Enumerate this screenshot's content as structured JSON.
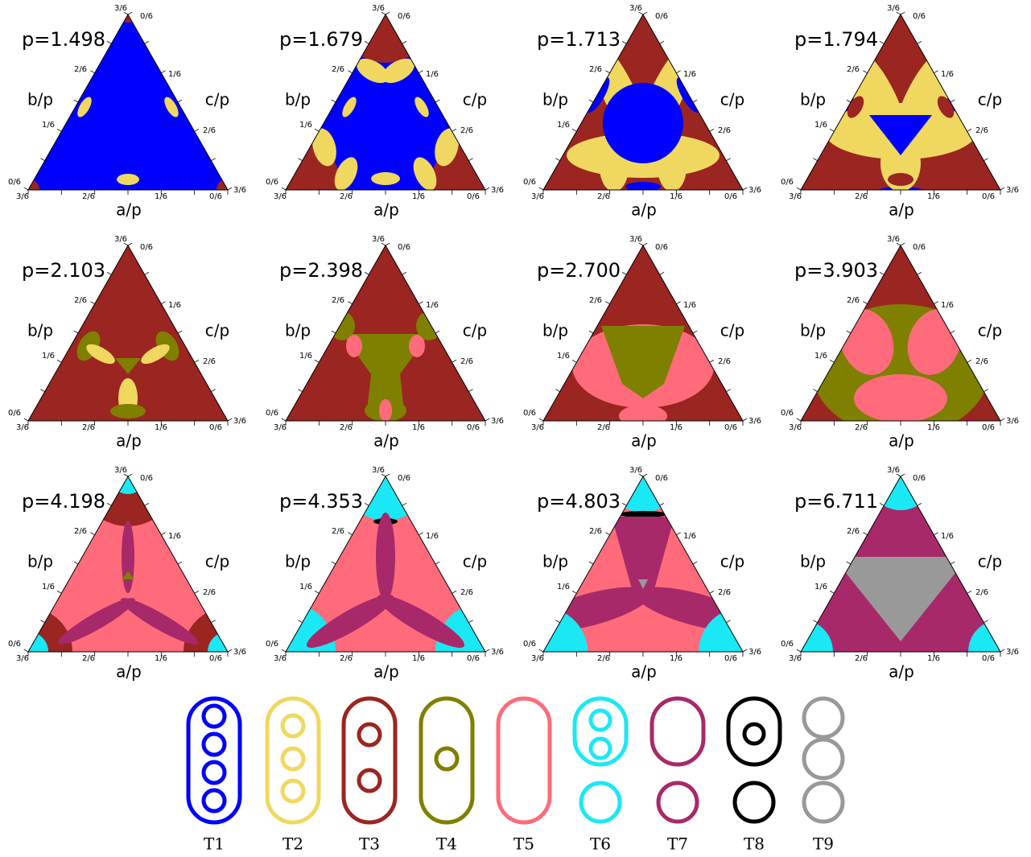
{
  "panels": [
    {
      "label": "p=1.498"
    },
    {
      "label": "p=1.679"
    },
    {
      "label": "p=1.713"
    },
    {
      "label": "p=1.794"
    },
    {
      "label": "p=2.103"
    },
    {
      "label": "p=2.398"
    },
    {
      "label": "p=2.700"
    },
    {
      "label": "p=3.903"
    },
    {
      "label": "p=4.198"
    },
    {
      "label": "p=4.353"
    },
    {
      "label": "p=4.803"
    },
    {
      "label": "p=6.711"
    }
  ],
  "axis_labels": {
    "a": "a/p",
    "b": "b/p",
    "c": "c/p"
  },
  "tick_labels": [
    "0/6",
    "1/6",
    "2/6",
    "3/6"
  ],
  "legend": [
    {
      "label": "T1"
    },
    {
      "label": "T2"
    },
    {
      "label": "T3"
    },
    {
      "label": "T4"
    },
    {
      "label": "T5"
    },
    {
      "label": "T6"
    },
    {
      "label": "T7"
    },
    {
      "label": "T8"
    },
    {
      "label": "T9"
    }
  ]
}
